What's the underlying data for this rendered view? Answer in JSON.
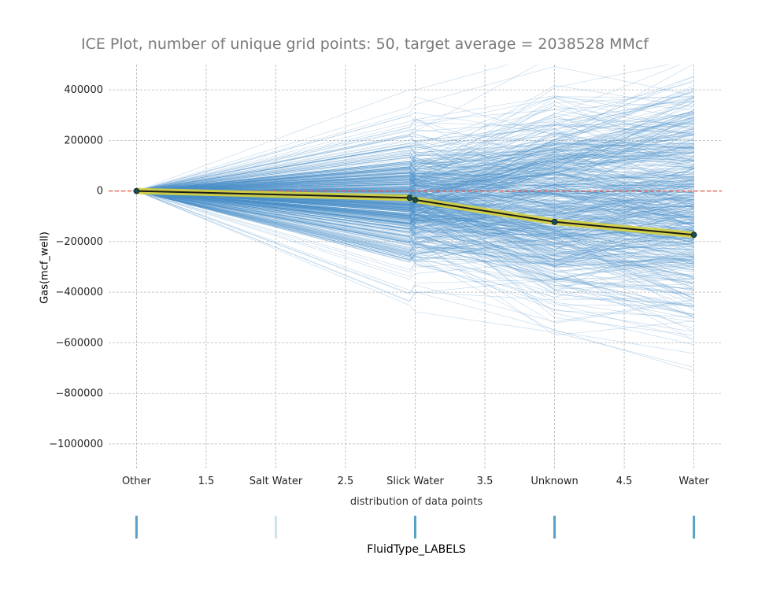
{
  "chart_data": {
    "type": "line",
    "title": "ICE Plot, number of unique grid points: 50, target average = 2038528 MMcf",
    "ylabel": "Gas(mcf_well)",
    "xlabel": "distribution of data points",
    "dist_label": "FluidType_LABELS",
    "xlim": [
      0.8,
      5.2
    ],
    "ylim": [
      -1100000,
      500000
    ],
    "x_ticks": [
      {
        "x": 1,
        "label": "Other"
      },
      {
        "x": 1.5,
        "label": "1.5"
      },
      {
        "x": 2,
        "label": "Salt Water"
      },
      {
        "x": 2.5,
        "label": "2.5"
      },
      {
        "x": 3,
        "label": "Slick Water"
      },
      {
        "x": 3.5,
        "label": "3.5"
      },
      {
        "x": 4,
        "label": "Unknown"
      },
      {
        "x": 4.5,
        "label": "4.5"
      },
      {
        "x": 5,
        "label": "Water"
      }
    ],
    "y_ticks": [
      {
        "y": 400000,
        "label": "400000"
      },
      {
        "y": 200000,
        "label": "200000"
      },
      {
        "y": 0,
        "label": "0"
      },
      {
        "y": -200000,
        "label": "−200000"
      },
      {
        "y": -400000,
        "label": "−400000"
      },
      {
        "y": -600000,
        "label": "−600000"
      },
      {
        "y": -800000,
        "label": "−800000"
      },
      {
        "y": -1000000,
        "label": "−1000000"
      }
    ],
    "grid": true,
    "series": [
      {
        "x": [
          1,
          2.96,
          3,
          4,
          5
        ],
        "values": [
          0,
          -27000,
          -35000,
          -122000,
          -173000
        ],
        "color": "#1a1a1a",
        "band_color": "#d7d23a"
      }
    ],
    "reference_line": {
      "y": 0,
      "color": "#e8513f"
    },
    "distribution_ticks": [
      {
        "x": 1,
        "weight": 1.0
      },
      {
        "x": 2,
        "weight": 0.15
      },
      {
        "x": 3,
        "weight": 1.0
      },
      {
        "x": 4,
        "weight": 1.0
      },
      {
        "x": 5,
        "weight": 1.0
      }
    ],
    "ice_line_color": "#4a90c8",
    "ice_line_count": 600
  }
}
